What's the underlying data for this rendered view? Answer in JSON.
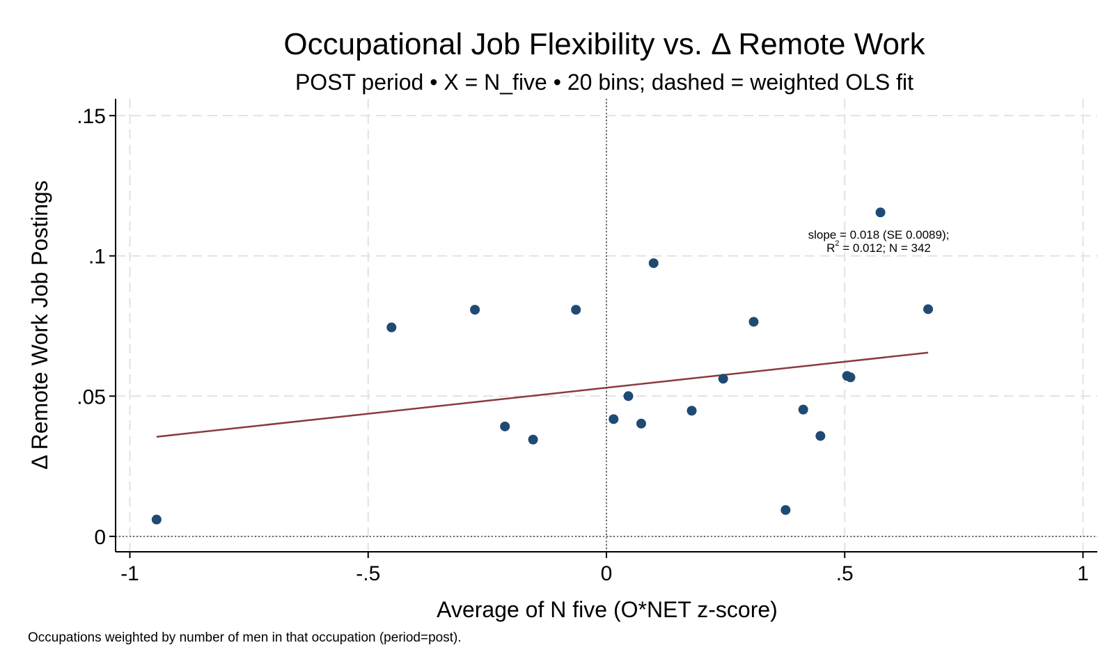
{
  "chart_data": {
    "type": "scatter",
    "title": "Occupational Job Flexibility vs. Δ Remote Work",
    "subtitle": "POST period • X = N_five • 20 bins; dashed = weighted OLS fit",
    "xlabel": "Average of N five (O*NET z-score)",
    "ylabel": "Δ Remote Work Job Postings",
    "note": "Occupations weighted by number of men in that occupation (period=post).",
    "annotation": {
      "line1": "slope = 0.018  (SE 0.0089);",
      "line2_prefix": "R",
      "line2_sup": "2",
      "line2_rest": " = 0.012;  N = 342"
    },
    "xlim": [
      -1.03,
      1.03
    ],
    "ylim": [
      -0.0055,
      0.156
    ],
    "xticks": [
      {
        "value": -1,
        "label": "-1"
      },
      {
        "value": -0.5,
        "label": "-.5"
      },
      {
        "value": 0,
        "label": "0"
      },
      {
        "value": 0.5,
        "label": ".5"
      },
      {
        "value": 1,
        "label": "1"
      }
    ],
    "yticks": [
      {
        "value": 0,
        "label": "0"
      },
      {
        "value": 0.05,
        "label": ".05"
      },
      {
        "value": 0.1,
        "label": ".1"
      },
      {
        "value": 0.15,
        "label": ".15"
      }
    ],
    "grid": true,
    "series": [
      {
        "name": "binned means",
        "color": "#1f4a73",
        "points": [
          {
            "x": -0.944,
            "y": 0.006
          },
          {
            "x": -0.451,
            "y": 0.0745
          },
          {
            "x": -0.276,
            "y": 0.0808
          },
          {
            "x": -0.213,
            "y": 0.0392
          },
          {
            "x": -0.154,
            "y": 0.0345
          },
          {
            "x": -0.064,
            "y": 0.0808
          },
          {
            "x": 0.015,
            "y": 0.0418
          },
          {
            "x": 0.046,
            "y": 0.05
          },
          {
            "x": 0.073,
            "y": 0.0402
          },
          {
            "x": 0.099,
            "y": 0.0974
          },
          {
            "x": 0.179,
            "y": 0.0448
          },
          {
            "x": 0.245,
            "y": 0.0562
          },
          {
            "x": 0.309,
            "y": 0.0765
          },
          {
            "x": 0.376,
            "y": 0.0094
          },
          {
            "x": 0.413,
            "y": 0.0452
          },
          {
            "x": 0.449,
            "y": 0.0358
          },
          {
            "x": 0.505,
            "y": 0.0572
          },
          {
            "x": 0.512,
            "y": 0.0567
          },
          {
            "x": 0.575,
            "y": 0.1155
          },
          {
            "x": 0.675,
            "y": 0.081
          }
        ]
      }
    ],
    "fit_line": {
      "name": "weighted OLS fit",
      "color": "#8b3a3e",
      "x0": -0.944,
      "y0": 0.0355,
      "x1": 0.675,
      "y1": 0.0655
    },
    "ref_lines": {
      "x": 0,
      "y": 0
    }
  }
}
